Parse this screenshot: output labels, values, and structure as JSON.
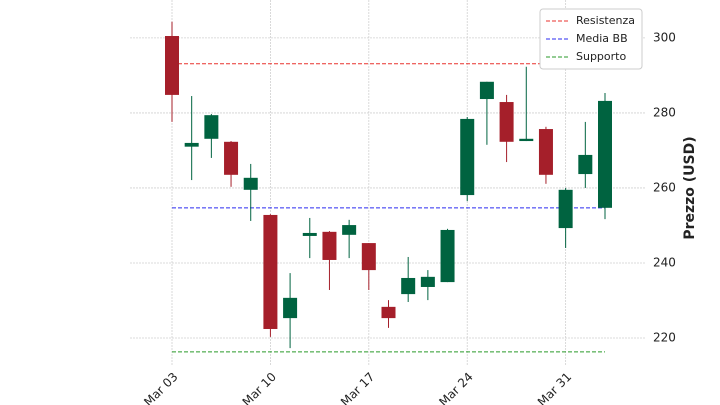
{
  "chart_data": {
    "type": "candlestick",
    "y_label": "Prezzo (USD)",
    "categories": [
      "Mar 03",
      null,
      null,
      null,
      null,
      "Mar 10",
      null,
      null,
      null,
      null,
      "Mar 17",
      null,
      null,
      null,
      null,
      "Mar 24",
      null,
      null,
      null,
      null,
      "Mar 31",
      null,
      null
    ],
    "open": [
      300.5,
      271.0,
      273.1,
      272.3,
      259.5,
      252.8,
      225.3,
      247.2,
      248.3,
      247.5,
      245.3,
      228.3,
      231.7,
      233.6,
      234.9,
      258.1,
      283.7,
      282.9,
      272.5,
      275.7,
      249.3,
      263.7,
      254.7
    ],
    "high": [
      304.3,
      284.5,
      279.7,
      272.5,
      266.4,
      253.0,
      237.3,
      252.0,
      248.5,
      251.5,
      245.3,
      230.1,
      241.6,
      238.1,
      249.1,
      278.9,
      288.3,
      284.8,
      292.3,
      276.3,
      260.0,
      277.6,
      285.3
    ],
    "low": [
      277.6,
      262.1,
      268.0,
      260.3,
      251.2,
      220.3,
      217.3,
      241.3,
      232.8,
      241.3,
      232.8,
      222.7,
      229.6,
      230.1,
      234.9,
      256.5,
      271.5,
      266.9,
      272.5,
      261.1,
      244.0,
      260.0,
      251.7
    ],
    "close": [
      284.8,
      272.0,
      279.4,
      263.5,
      262.7,
      222.4,
      230.7,
      248.0,
      240.8,
      250.1,
      238.1,
      225.3,
      236.0,
      236.3,
      248.8,
      278.4,
      288.3,
      272.3,
      273.1,
      263.5,
      259.5,
      268.8,
      283.2
    ],
    "up_color": "#006340",
    "down_color": "#a51f2a",
    "hlines": [
      {
        "name": "Resistenza",
        "value": 293.1,
        "color": "#e8322e"
      },
      {
        "name": "Media BB",
        "value": 254.7,
        "color": "#2b2bf0"
      },
      {
        "name": "Supporto",
        "value": 216.3,
        "color": "#2a9a2a"
      }
    ],
    "ylim": [
      212.8,
      310.1
    ],
    "yticks": [
      220,
      240,
      260,
      280,
      300
    ],
    "grid": true,
    "legend": "upper right"
  }
}
